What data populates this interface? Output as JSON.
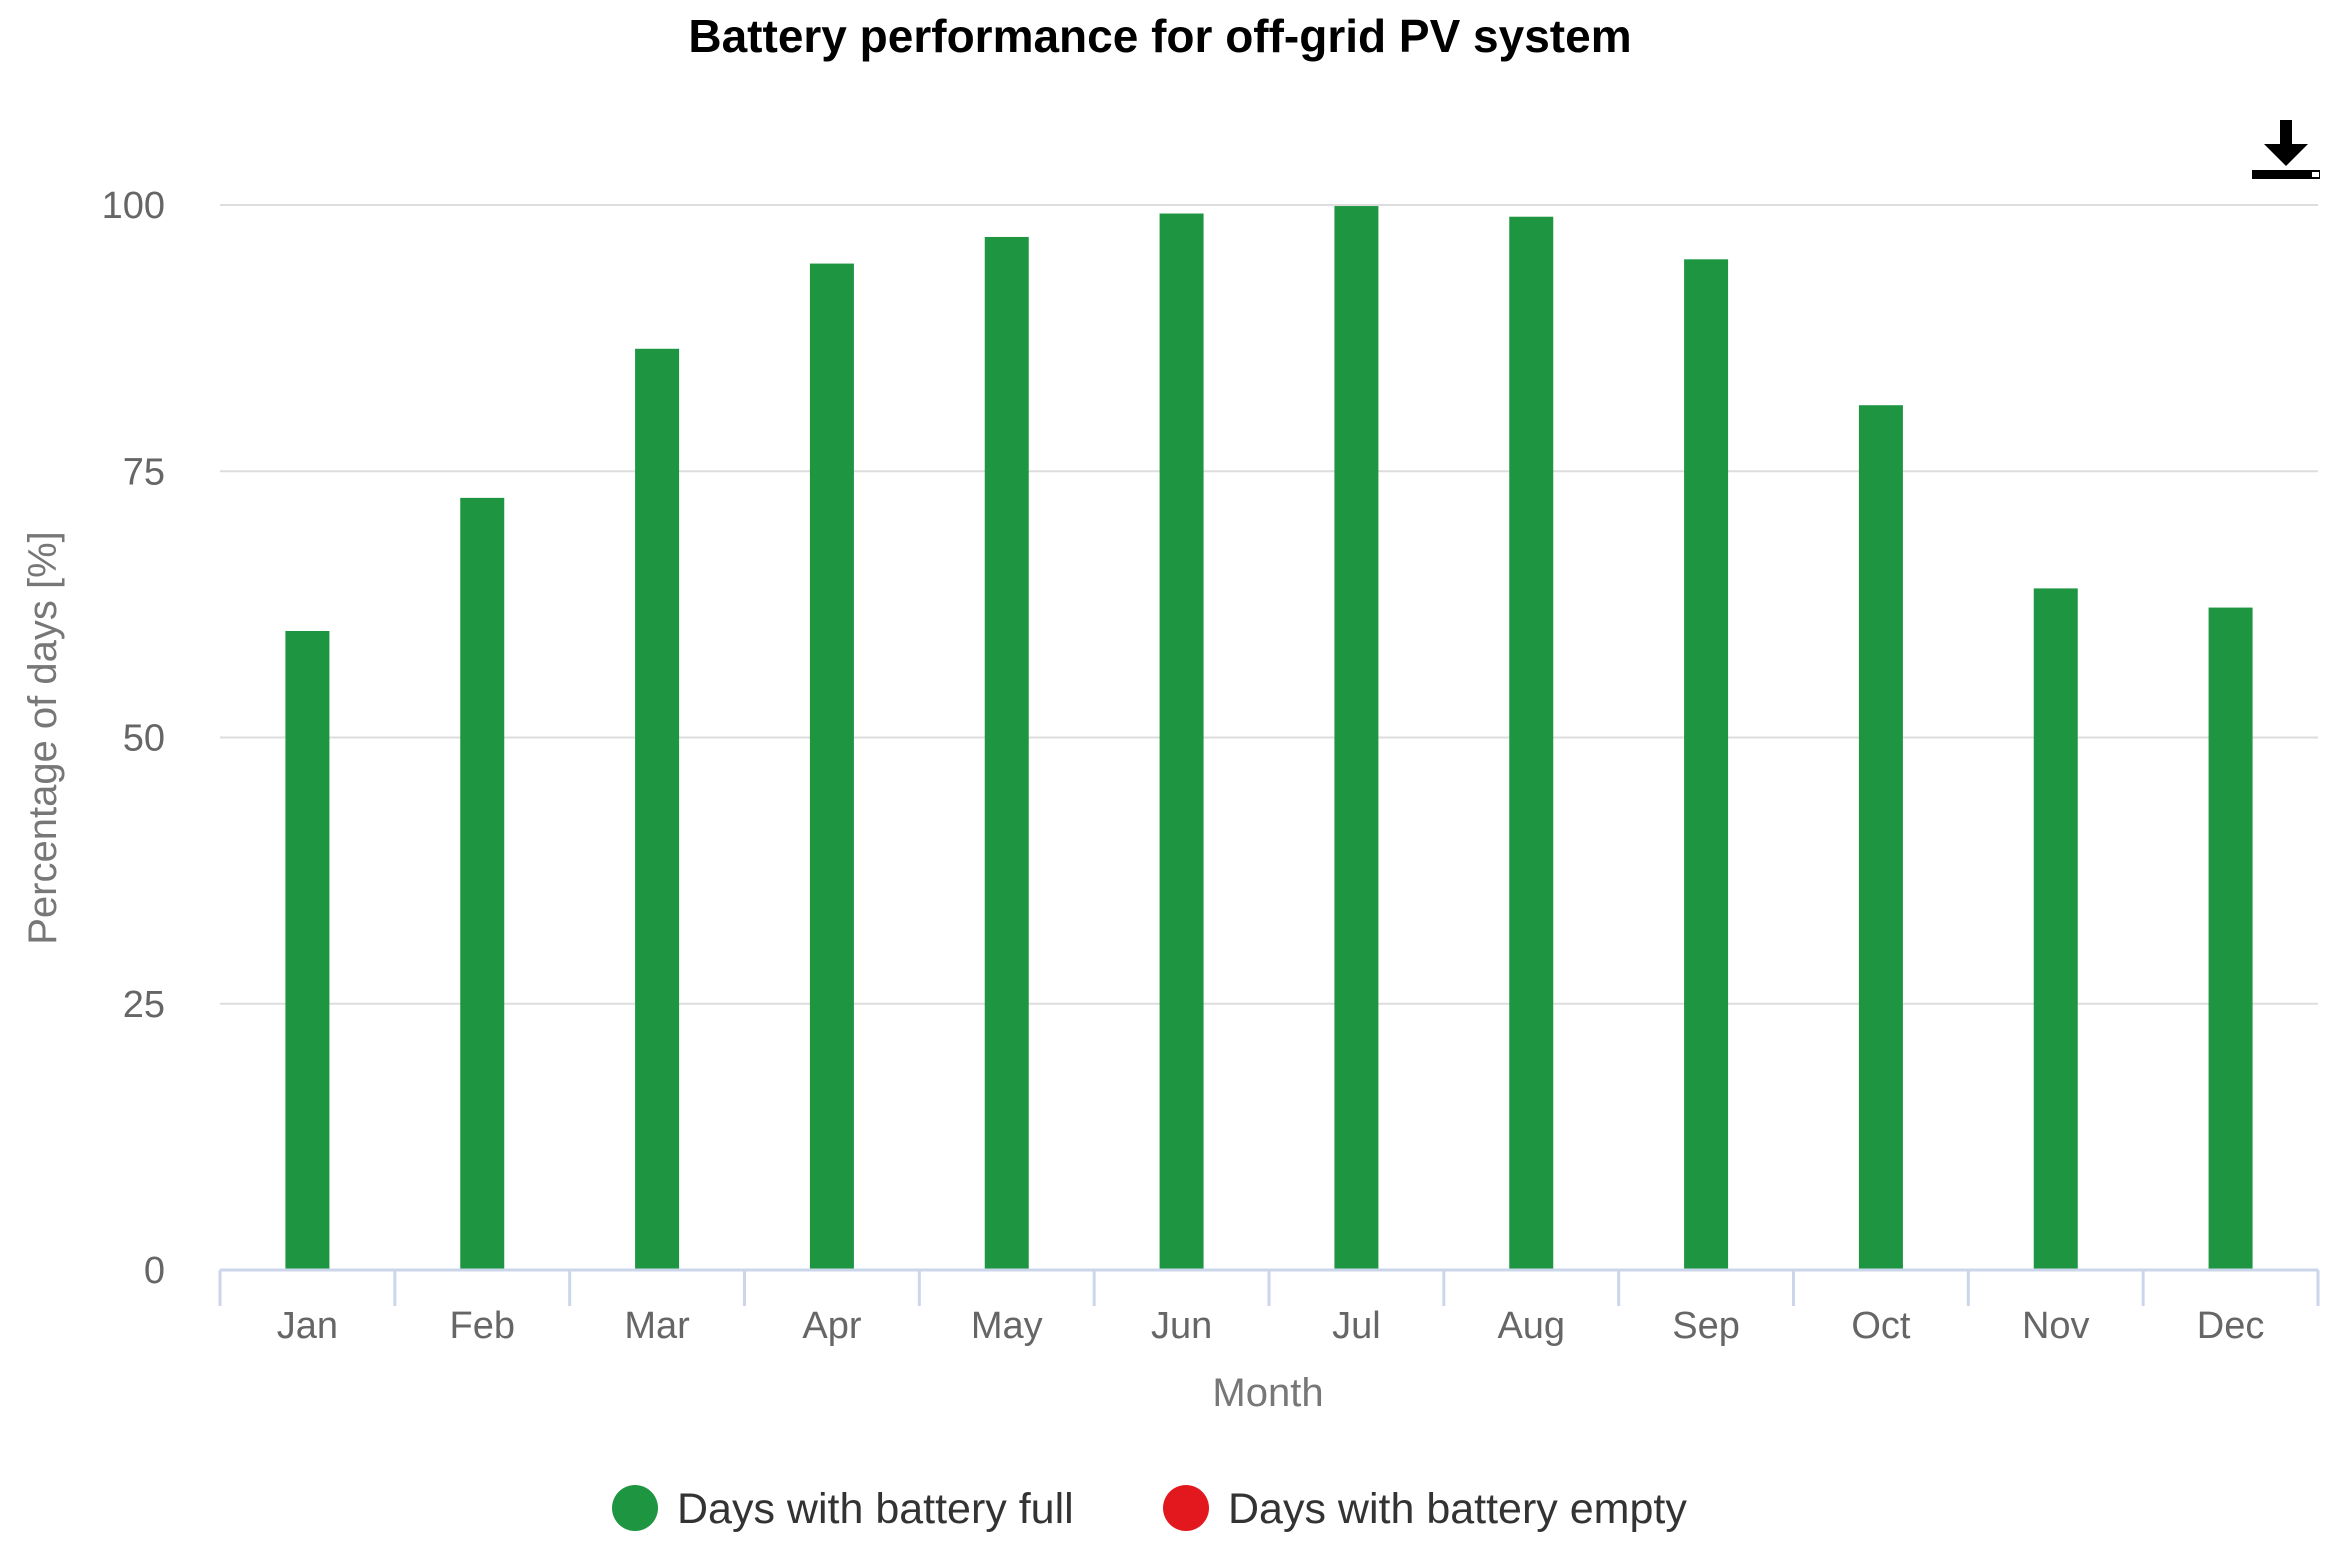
{
  "chart_data": {
    "type": "bar",
    "title": "Battery performance for off-grid PV system",
    "xlabel": "Month",
    "ylabel": "Percentage of days [%]",
    "categories": [
      "Jan",
      "Feb",
      "Mar",
      "Apr",
      "May",
      "Jun",
      "Jul",
      "Aug",
      "Sep",
      "Oct",
      "Nov",
      "Dec"
    ],
    "series": [
      {
        "name": "Days with battery full",
        "color": "#1e9641",
        "values": [
          60,
          72.5,
          86.5,
          94.5,
          97,
          99.2,
          99.9,
          98.9,
          94.9,
          81.2,
          64,
          62.2
        ]
      },
      {
        "name": "Days with battery empty",
        "color": "#e3181f",
        "values": [
          0,
          0,
          0,
          0,
          0,
          0,
          0,
          0,
          0,
          0,
          0,
          0
        ]
      }
    ],
    "ylim": [
      0,
      100
    ],
    "yticks": [
      0,
      25,
      50,
      75,
      100
    ],
    "grid": true,
    "legend_position": "bottom-center"
  },
  "toolbar": {
    "download_icon": "download-icon"
  }
}
